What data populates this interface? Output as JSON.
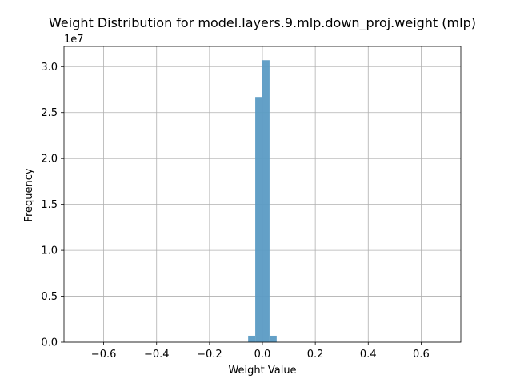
{
  "chart_data": {
    "type": "bar",
    "title": "Weight Distribution for model.layers.9.mlp.down_proj.weight (mlp)",
    "xlabel": "Weight Value",
    "ylabel": "Frequency",
    "y_offset_label": "1e7",
    "xlim": [
      -0.75,
      0.75
    ],
    "ylim": [
      0,
      3.22
    ],
    "y_scale_multiplier": 10000000,
    "xticks": [
      -0.6,
      -0.4,
      -0.2,
      0.0,
      0.2,
      0.4,
      0.6
    ],
    "xtick_labels": [
      "−0.6",
      "−0.4",
      "−0.2",
      "0.0",
      "0.2",
      "0.4",
      "0.6"
    ],
    "yticks": [
      0.0,
      0.5,
      1.0,
      1.5,
      2.0,
      2.5,
      3.0
    ],
    "ytick_labels": [
      "0.0",
      "0.5",
      "1.0",
      "1.5",
      "2.0",
      "2.5",
      "3.0"
    ],
    "grid": true,
    "bar_color": "#5b9bc4",
    "bins": [
      {
        "x0": -0.054,
        "x1": -0.027,
        "value": 0.07
      },
      {
        "x0": -0.027,
        "x1": 0.0,
        "value": 2.67
      },
      {
        "x0": 0.0,
        "x1": 0.027,
        "value": 3.07
      },
      {
        "x0": 0.027,
        "x1": 0.054,
        "value": 0.07
      }
    ]
  }
}
